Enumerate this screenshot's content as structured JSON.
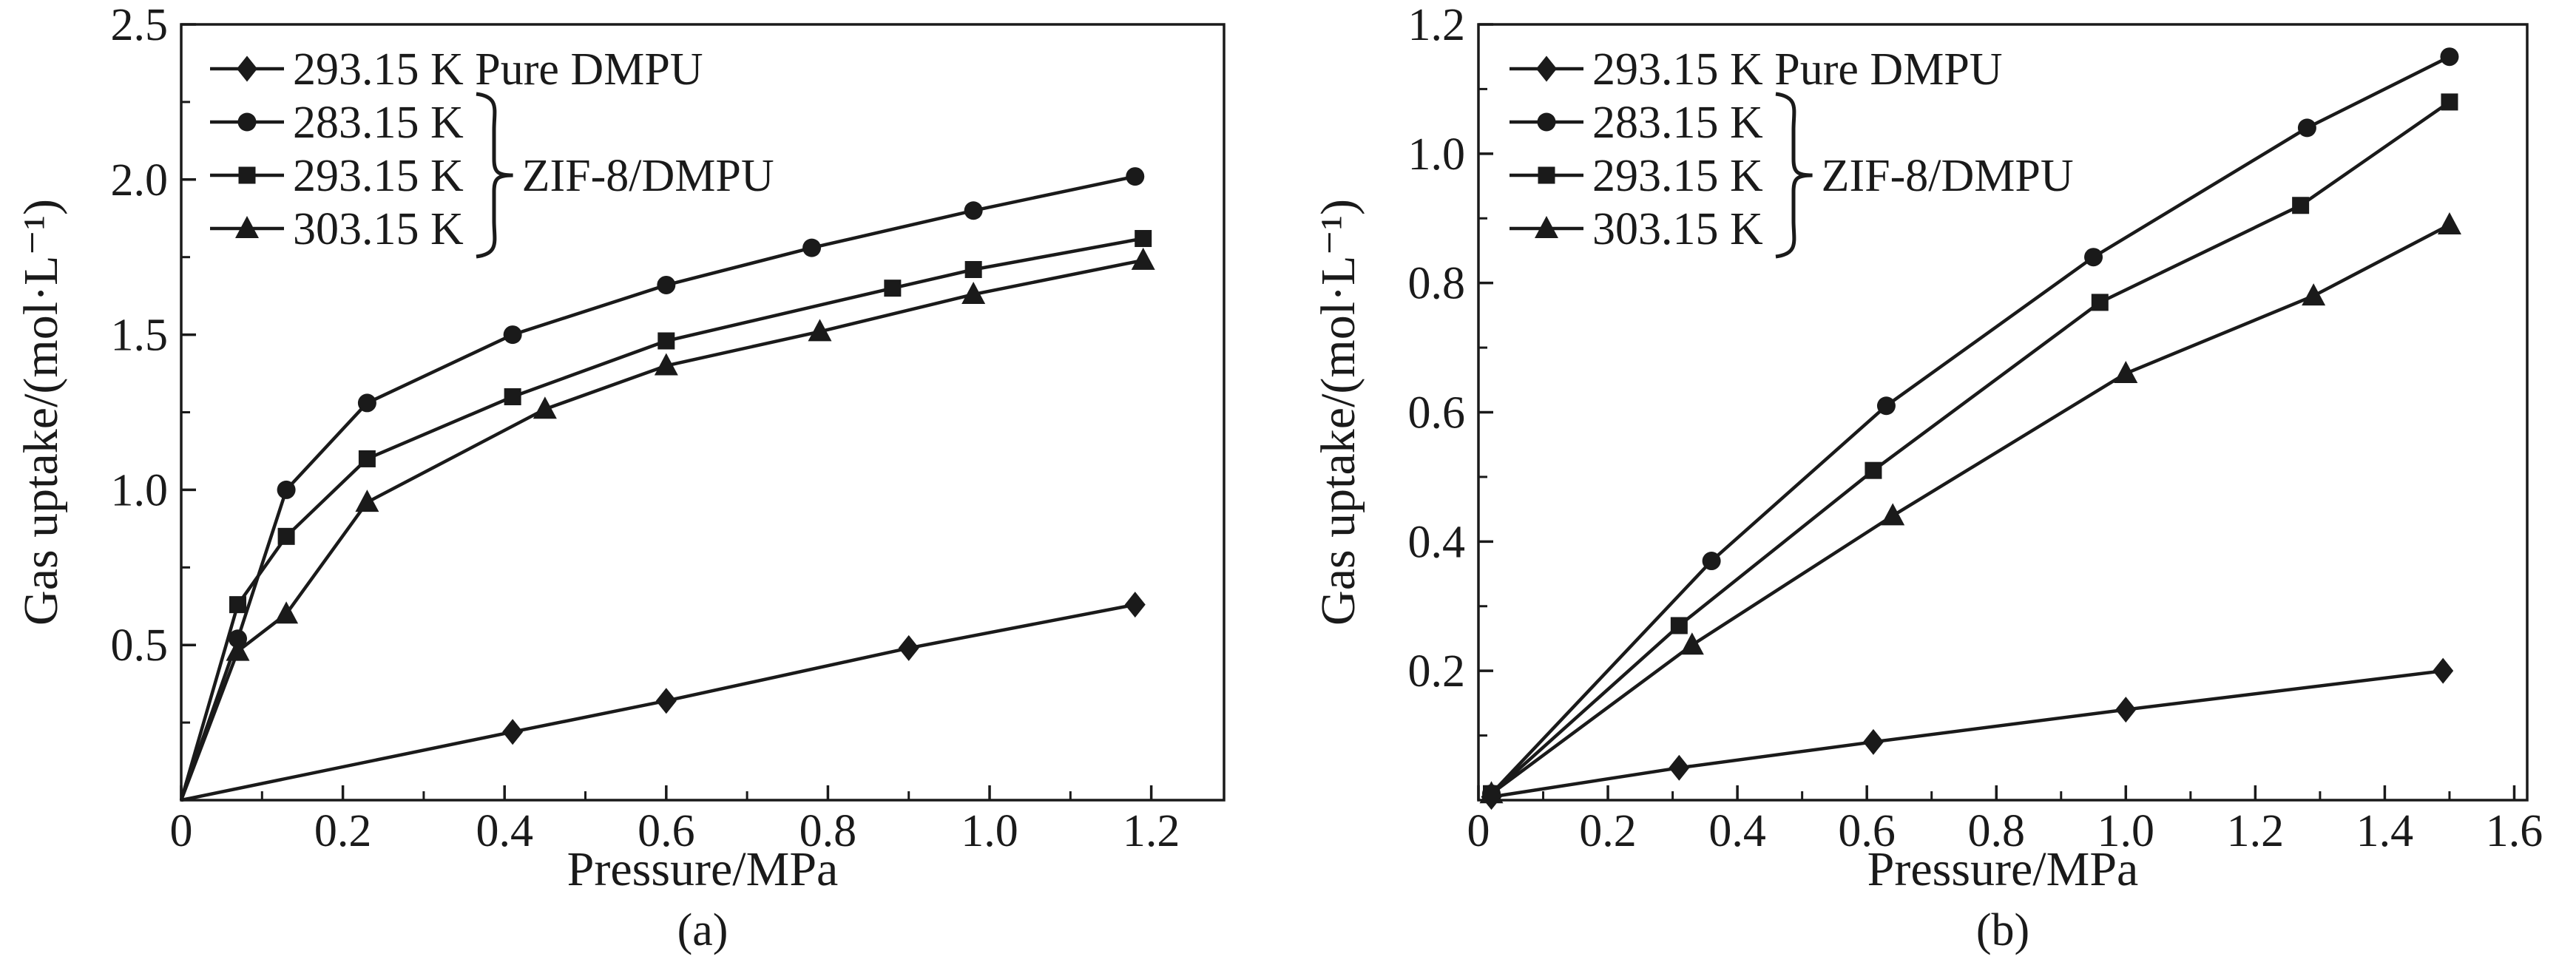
{
  "figure": {
    "background": "#ffffff",
    "ink_color": "#1a1a1a"
  },
  "legend": {
    "entries": [
      {
        "marker": "diamond",
        "label": "293.15 K Pure DMPU"
      },
      {
        "marker": "circle",
        "label": "283.15 K"
      },
      {
        "marker": "square",
        "label": "293.15 K"
      },
      {
        "marker": "triangle",
        "label": "303.15 K"
      }
    ],
    "group_label": "ZIF-8/DMPU",
    "group_entries": [
      "283.15 K",
      "293.15 K",
      "303.15 K"
    ]
  },
  "chart_data": [
    {
      "id": "a",
      "type": "line",
      "caption": "(a)",
      "xlabel": "Pressure/MPa",
      "ylabel": "Gas uptake/(mol·L⁻¹)",
      "xlim": [
        0,
        1.29
      ],
      "ylim": [
        0,
        2.5
      ],
      "xticks": [
        0,
        0.2,
        0.4,
        0.6,
        0.8,
        1.0,
        1.2
      ],
      "xtick_labels": [
        "0",
        "0.2",
        "0.4",
        "0.6",
        "0.8",
        "1.0",
        "1.2"
      ],
      "yticks": [
        0.5,
        1.0,
        1.5,
        2.0,
        2.5
      ],
      "ytick_labels": [
        "0.5",
        "1.0",
        "1.5",
        "2.0",
        "2.5"
      ],
      "grid": false,
      "legend_position": "top-left",
      "series": [
        {
          "name": "293.15 K Pure DMPU",
          "marker": "diamond",
          "points": [
            [
              0,
              0
            ],
            [
              0.41,
              0.22
            ],
            [
              0.6,
              0.32
            ],
            [
              0.9,
              0.49
            ],
            [
              1.18,
              0.63
            ]
          ]
        },
        {
          "name": "283.15 K ZIF-8/DMPU",
          "marker": "circle",
          "points": [
            [
              0,
              0
            ],
            [
              0.07,
              0.52
            ],
            [
              0.13,
              1.0
            ],
            [
              0.23,
              1.28
            ],
            [
              0.41,
              1.5
            ],
            [
              0.6,
              1.66
            ],
            [
              0.78,
              1.78
            ],
            [
              0.98,
              1.9
            ],
            [
              1.18,
              2.01
            ]
          ]
        },
        {
          "name": "293.15 K ZIF-8/DMPU",
          "marker": "square",
          "points": [
            [
              0,
              0
            ],
            [
              0.07,
              0.63
            ],
            [
              0.13,
              0.85
            ],
            [
              0.23,
              1.1
            ],
            [
              0.41,
              1.3
            ],
            [
              0.6,
              1.48
            ],
            [
              0.88,
              1.65
            ],
            [
              0.98,
              1.71
            ],
            [
              1.19,
              1.81
            ]
          ]
        },
        {
          "name": "303.15 K ZIF-8/DMPU",
          "marker": "triangle",
          "points": [
            [
              0,
              0
            ],
            [
              0.07,
              0.48
            ],
            [
              0.13,
              0.6
            ],
            [
              0.23,
              0.96
            ],
            [
              0.45,
              1.26
            ],
            [
              0.6,
              1.4
            ],
            [
              0.79,
              1.51
            ],
            [
              0.98,
              1.63
            ],
            [
              1.19,
              1.74
            ]
          ]
        }
      ]
    },
    {
      "id": "b",
      "type": "line",
      "caption": "(b)",
      "xlabel": "Pressure/MPa",
      "ylabel": "Gas uptake/(mol·L⁻¹)",
      "xlim": [
        0,
        1.62
      ],
      "ylim": [
        0,
        1.2
      ],
      "xticks": [
        0,
        0.2,
        0.4,
        0.6,
        0.8,
        1.0,
        1.2,
        1.4,
        1.6
      ],
      "xtick_labels": [
        "0",
        "0.2",
        "0.4",
        "0.6",
        "0.8",
        "1.0",
        "1.2",
        "1.4",
        "1.6"
      ],
      "yticks": [
        0.2,
        0.4,
        0.6,
        0.8,
        1.0,
        1.2
      ],
      "ytick_labels": [
        "0.2",
        "0.4",
        "0.6",
        "0.8",
        "1.0",
        "1.2"
      ],
      "grid": false,
      "legend_position": "top-left",
      "series": [
        {
          "name": "293.15 K Pure DMPU",
          "marker": "diamond",
          "points": [
            [
              0.02,
              0.005
            ],
            [
              0.31,
              0.05
            ],
            [
              0.61,
              0.09
            ],
            [
              1.0,
              0.14
            ],
            [
              1.49,
              0.2
            ]
          ]
        },
        {
          "name": "283.15 K ZIF-8/DMPU",
          "marker": "circle",
          "points": [
            [
              0.02,
              0.01
            ],
            [
              0.36,
              0.37
            ],
            [
              0.63,
              0.61
            ],
            [
              0.95,
              0.84
            ],
            [
              1.28,
              1.04
            ],
            [
              1.5,
              1.15
            ]
          ]
        },
        {
          "name": "293.15 K ZIF-8/DMPU",
          "marker": "square",
          "points": [
            [
              0.02,
              0.01
            ],
            [
              0.31,
              0.27
            ],
            [
              0.61,
              0.51
            ],
            [
              0.96,
              0.77
            ],
            [
              1.27,
              0.92
            ],
            [
              1.5,
              1.08
            ]
          ]
        },
        {
          "name": "303.15 K ZIF-8/DMPU",
          "marker": "triangle",
          "points": [
            [
              0.02,
              0.01
            ],
            [
              0.33,
              0.24
            ],
            [
              0.64,
              0.44
            ],
            [
              1.0,
              0.66
            ],
            [
              1.29,
              0.78
            ],
            [
              1.5,
              0.89
            ]
          ]
        }
      ]
    }
  ]
}
